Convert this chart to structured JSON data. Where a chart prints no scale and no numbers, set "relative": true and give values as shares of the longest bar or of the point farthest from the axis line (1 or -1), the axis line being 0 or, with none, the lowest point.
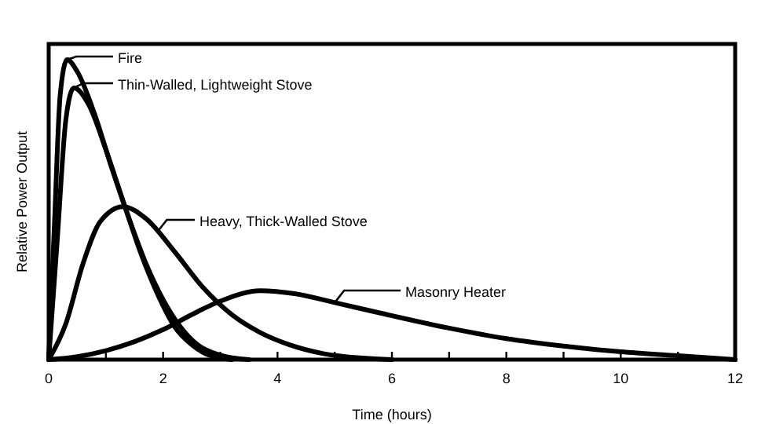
{
  "chart_data": {
    "type": "line",
    "relative": true,
    "xlabel": "Time (hours)",
    "ylabel": "Relative Power Output",
    "xlim": [
      0,
      12
    ],
    "xticks": [
      0,
      {
        "value": 1,
        "label": null
      },
      2,
      {
        "value": 3,
        "label": null
      },
      4,
      {
        "value": 5,
        "label": null
      },
      6,
      {
        "value": 7,
        "label": null
      },
      8,
      {
        "value": 9,
        "label": null
      },
      10,
      {
        "value": 11,
        "label": null
      },
      12
    ],
    "grid": false,
    "legend": "top left",
    "marker": "none",
    "line_style": "solid",
    "series": [
      {
        "name": "Fire",
        "color": "#000000",
        "x": [
          0,
          0.1,
          0.2,
          0.32,
          0.5,
          0.8,
          1.1,
          1.35,
          1.6,
          1.9,
          2.2,
          2.5,
          2.8,
          3.2
        ],
        "values": [
          0,
          0.45,
          0.88,
          1,
          0.96,
          0.82,
          0.64,
          0.5,
          0.36,
          0.22,
          0.11,
          0.05,
          0.015,
          0
        ]
      },
      {
        "name": "Thin-Walled, Lightweight Stove",
        "color": "#000000",
        "x": [
          0,
          0.15,
          0.3,
          0.44,
          0.7,
          1,
          1.35,
          1.7,
          2,
          2.3,
          2.6,
          3,
          3.5
        ],
        "values": [
          0,
          0.4,
          0.8,
          0.906,
          0.85,
          0.7,
          0.5,
          0.32,
          0.2,
          0.11,
          0.05,
          0.015,
          0
        ]
      },
      {
        "name": "Heavy, Thick-Walled Stove",
        "color": "#000000",
        "x": [
          0,
          0.3,
          0.6,
          0.9,
          1.3,
          1.7,
          2.2,
          2.7,
          3.2,
          3.7,
          4.2,
          4.8,
          5.5,
          6
        ],
        "values": [
          0,
          0.12,
          0.32,
          0.46,
          0.51,
          0.47,
          0.36,
          0.24,
          0.15,
          0.09,
          0.05,
          0.02,
          0.005,
          0
        ]
      },
      {
        "name": "Masonry Heater",
        "color": "#000000",
        "x": [
          0,
          0.5,
          1,
          1.5,
          2,
          2.5,
          3,
          3.7,
          4.3,
          5,
          5.8,
          7,
          8,
          9,
          10,
          11,
          12
        ],
        "values": [
          0,
          0.01,
          0.03,
          0.06,
          0.1,
          0.15,
          0.195,
          0.23,
          0.22,
          0.19,
          0.155,
          0.105,
          0.07,
          0.045,
          0.026,
          0.013,
          0
        ]
      }
    ]
  }
}
